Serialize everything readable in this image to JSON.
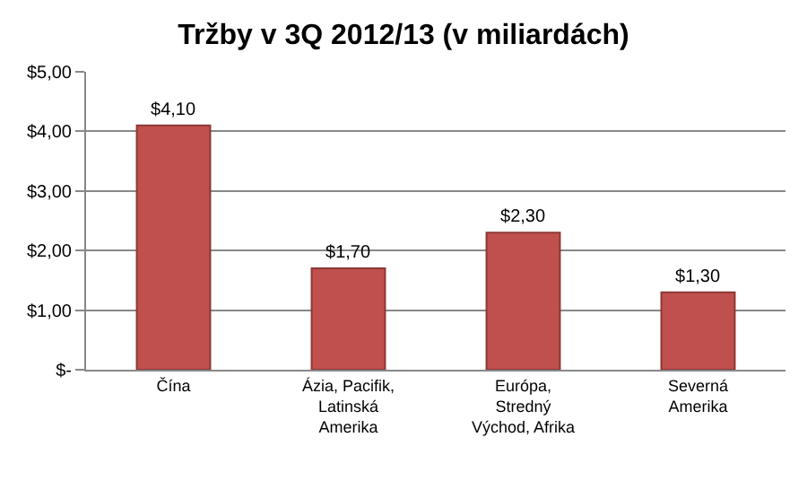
{
  "chart_data": {
    "type": "bar",
    "title": "Tržby v 3Q 2012/13 (v miliardách)",
    "categories": [
      "Čína",
      "Ázia, Pacifik, Latinská Amerika",
      "Európa, Stredný Východ, Afrika",
      "Severná Amerika"
    ],
    "values": [
      4.1,
      1.7,
      2.3,
      1.3
    ],
    "value_labels": [
      "$4,10",
      "$1,70",
      "$2,30",
      "$1,30"
    ],
    "color": "#c0504d",
    "ylim": [
      0,
      5
    ],
    "yticks": [
      {
        "value": 0,
        "label": "$-"
      },
      {
        "value": 1,
        "label": "$1,00"
      },
      {
        "value": 2,
        "label": "$2,00"
      },
      {
        "value": 3,
        "label": "$3,00"
      },
      {
        "value": 4,
        "label": "$4,00"
      },
      {
        "value": 5,
        "label": "$5,00"
      }
    ],
    "grid": "y",
    "legend": false
  }
}
